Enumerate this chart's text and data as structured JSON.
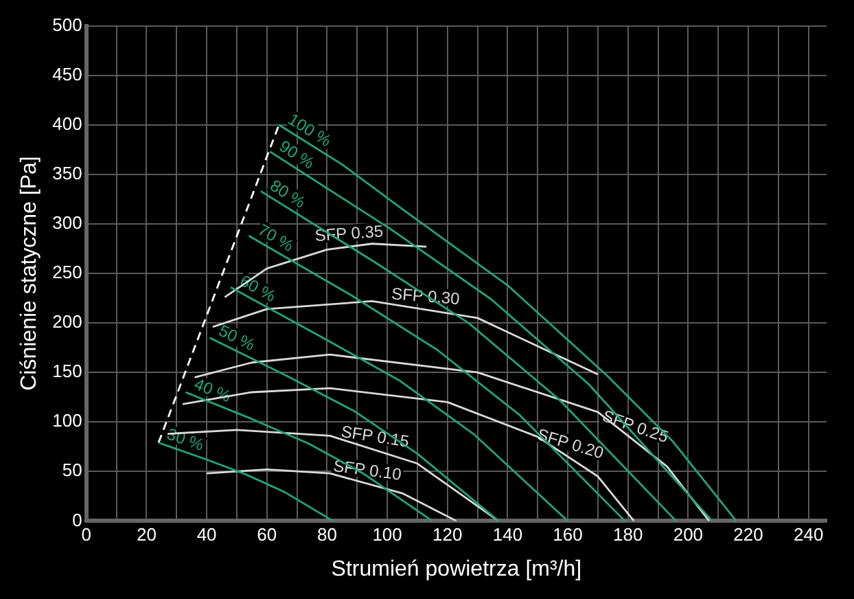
{
  "chart_data": {
    "type": "line",
    "xlabel": "Strumień powietrza [m³/h]",
    "ylabel": "Ciśnienie statyczne [Pa]",
    "xlim": [
      0,
      246
    ],
    "ylim": [
      0,
      500
    ],
    "xticks": [
      0,
      {
        "value": 10,
        "label": null
      },
      20,
      {
        "value": 30,
        "label": null
      },
      40,
      {
        "value": 50,
        "label": null
      },
      60,
      {
        "value": 70,
        "label": null
      },
      80,
      {
        "value": 90,
        "label": null
      },
      100,
      {
        "value": 110,
        "label": null
      },
      120,
      {
        "value": 130,
        "label": null
      },
      140,
      {
        "value": 150,
        "label": null
      },
      160,
      {
        "value": 170,
        "label": null
      },
      180,
      {
        "value": 190,
        "label": null
      },
      200,
      {
        "value": 210,
        "label": null
      },
      220,
      {
        "value": 230,
        "label": null
      },
      240
    ],
    "yticks": [
      0,
      50,
      100,
      150,
      200,
      250,
      300,
      350,
      400,
      450,
      500
    ],
    "grid": true,
    "legend": false,
    "marker": "none",
    "series": [
      {
        "name": "100 %",
        "color": "#1fa67a",
        "x": [
          64,
          85,
          105,
          140,
          173,
          195,
          216
        ],
        "values": [
          400,
          360,
          315,
          238,
          147,
          80,
          0
        ]
      },
      {
        "name": "90 %",
        "color": "#1fa67a",
        "x": [
          61,
          101,
          134.5,
          167,
          208
        ],
        "values": [
          373,
          295,
          224,
          138,
          0
        ]
      },
      {
        "name": "80 %",
        "color": "#1fa67a",
        "x": [
          58,
          95,
          127,
          157,
          196
        ],
        "values": [
          333,
          263,
          200,
          123,
          0
        ]
      },
      {
        "name": "70 %",
        "color": "#1fa67a",
        "x": [
          54,
          88,
          116.5,
          144,
          179
        ],
        "values": [
          288,
          228,
          173,
          107,
          0
        ]
      },
      {
        "name": "60 %",
        "color": "#1fa67a",
        "x": [
          48,
          78,
          104,
          129,
          160
        ],
        "values": [
          236,
          186,
          142,
          87,
          0
        ]
      },
      {
        "name": "50 %",
        "color": "#1fa67a",
        "x": [
          41,
          67,
          89,
          110,
          137
        ],
        "values": [
          185,
          146,
          111,
          68,
          0
        ]
      },
      {
        "name": "40 %",
        "color": "#1fa67a",
        "x": [
          33,
          55,
          74,
          92,
          115
        ],
        "values": [
          130,
          103,
          78,
          48,
          0
        ]
      },
      {
        "name": "30 %",
        "color": "#1fa67a",
        "x": [
          24,
          40,
          53,
          66,
          82
        ],
        "values": [
          79,
          62,
          47,
          29,
          0
        ]
      },
      {
        "name": "SFP 0.35",
        "color": "#d9d9d9",
        "x": [
          46,
          60,
          80,
          95,
          113
        ],
        "values": [
          226,
          255,
          274,
          280,
          277
        ]
      },
      {
        "name": "SFP 0.30",
        "color": "#d9d9d9",
        "x": [
          42,
          60,
          95,
          130,
          170
        ],
        "values": [
          196,
          214,
          222,
          205,
          148
        ]
      },
      {
        "name": "SFP 0.25",
        "color": "#d9d9d9",
        "x": [
          36,
          55,
          81,
          130,
          170,
          193,
          207
        ],
        "values": [
          145,
          160,
          168,
          150,
          110,
          55,
          0
        ]
      },
      {
        "name": "SFP 0.20",
        "color": "#d9d9d9",
        "x": [
          32,
          55,
          81,
          120,
          150,
          170,
          182
        ],
        "values": [
          118,
          130,
          134,
          120,
          85,
          45,
          0
        ]
      },
      {
        "name": "SFP 0.15",
        "color": "#d9d9d9",
        "x": [
          27,
          50,
          81,
          110,
          137
        ],
        "values": [
          88,
          92,
          86,
          58,
          0
        ]
      },
      {
        "name": "SFP 0.10",
        "color": "#d9d9d9",
        "x": [
          40,
          60,
          81,
          105,
          123
        ],
        "values": [
          48,
          52,
          48,
          28,
          0
        ]
      },
      {
        "color": "#ffffff",
        "line_style": "dashed",
        "x": [
          24,
          64
        ],
        "values": [
          79,
          400
        ]
      }
    ]
  }
}
